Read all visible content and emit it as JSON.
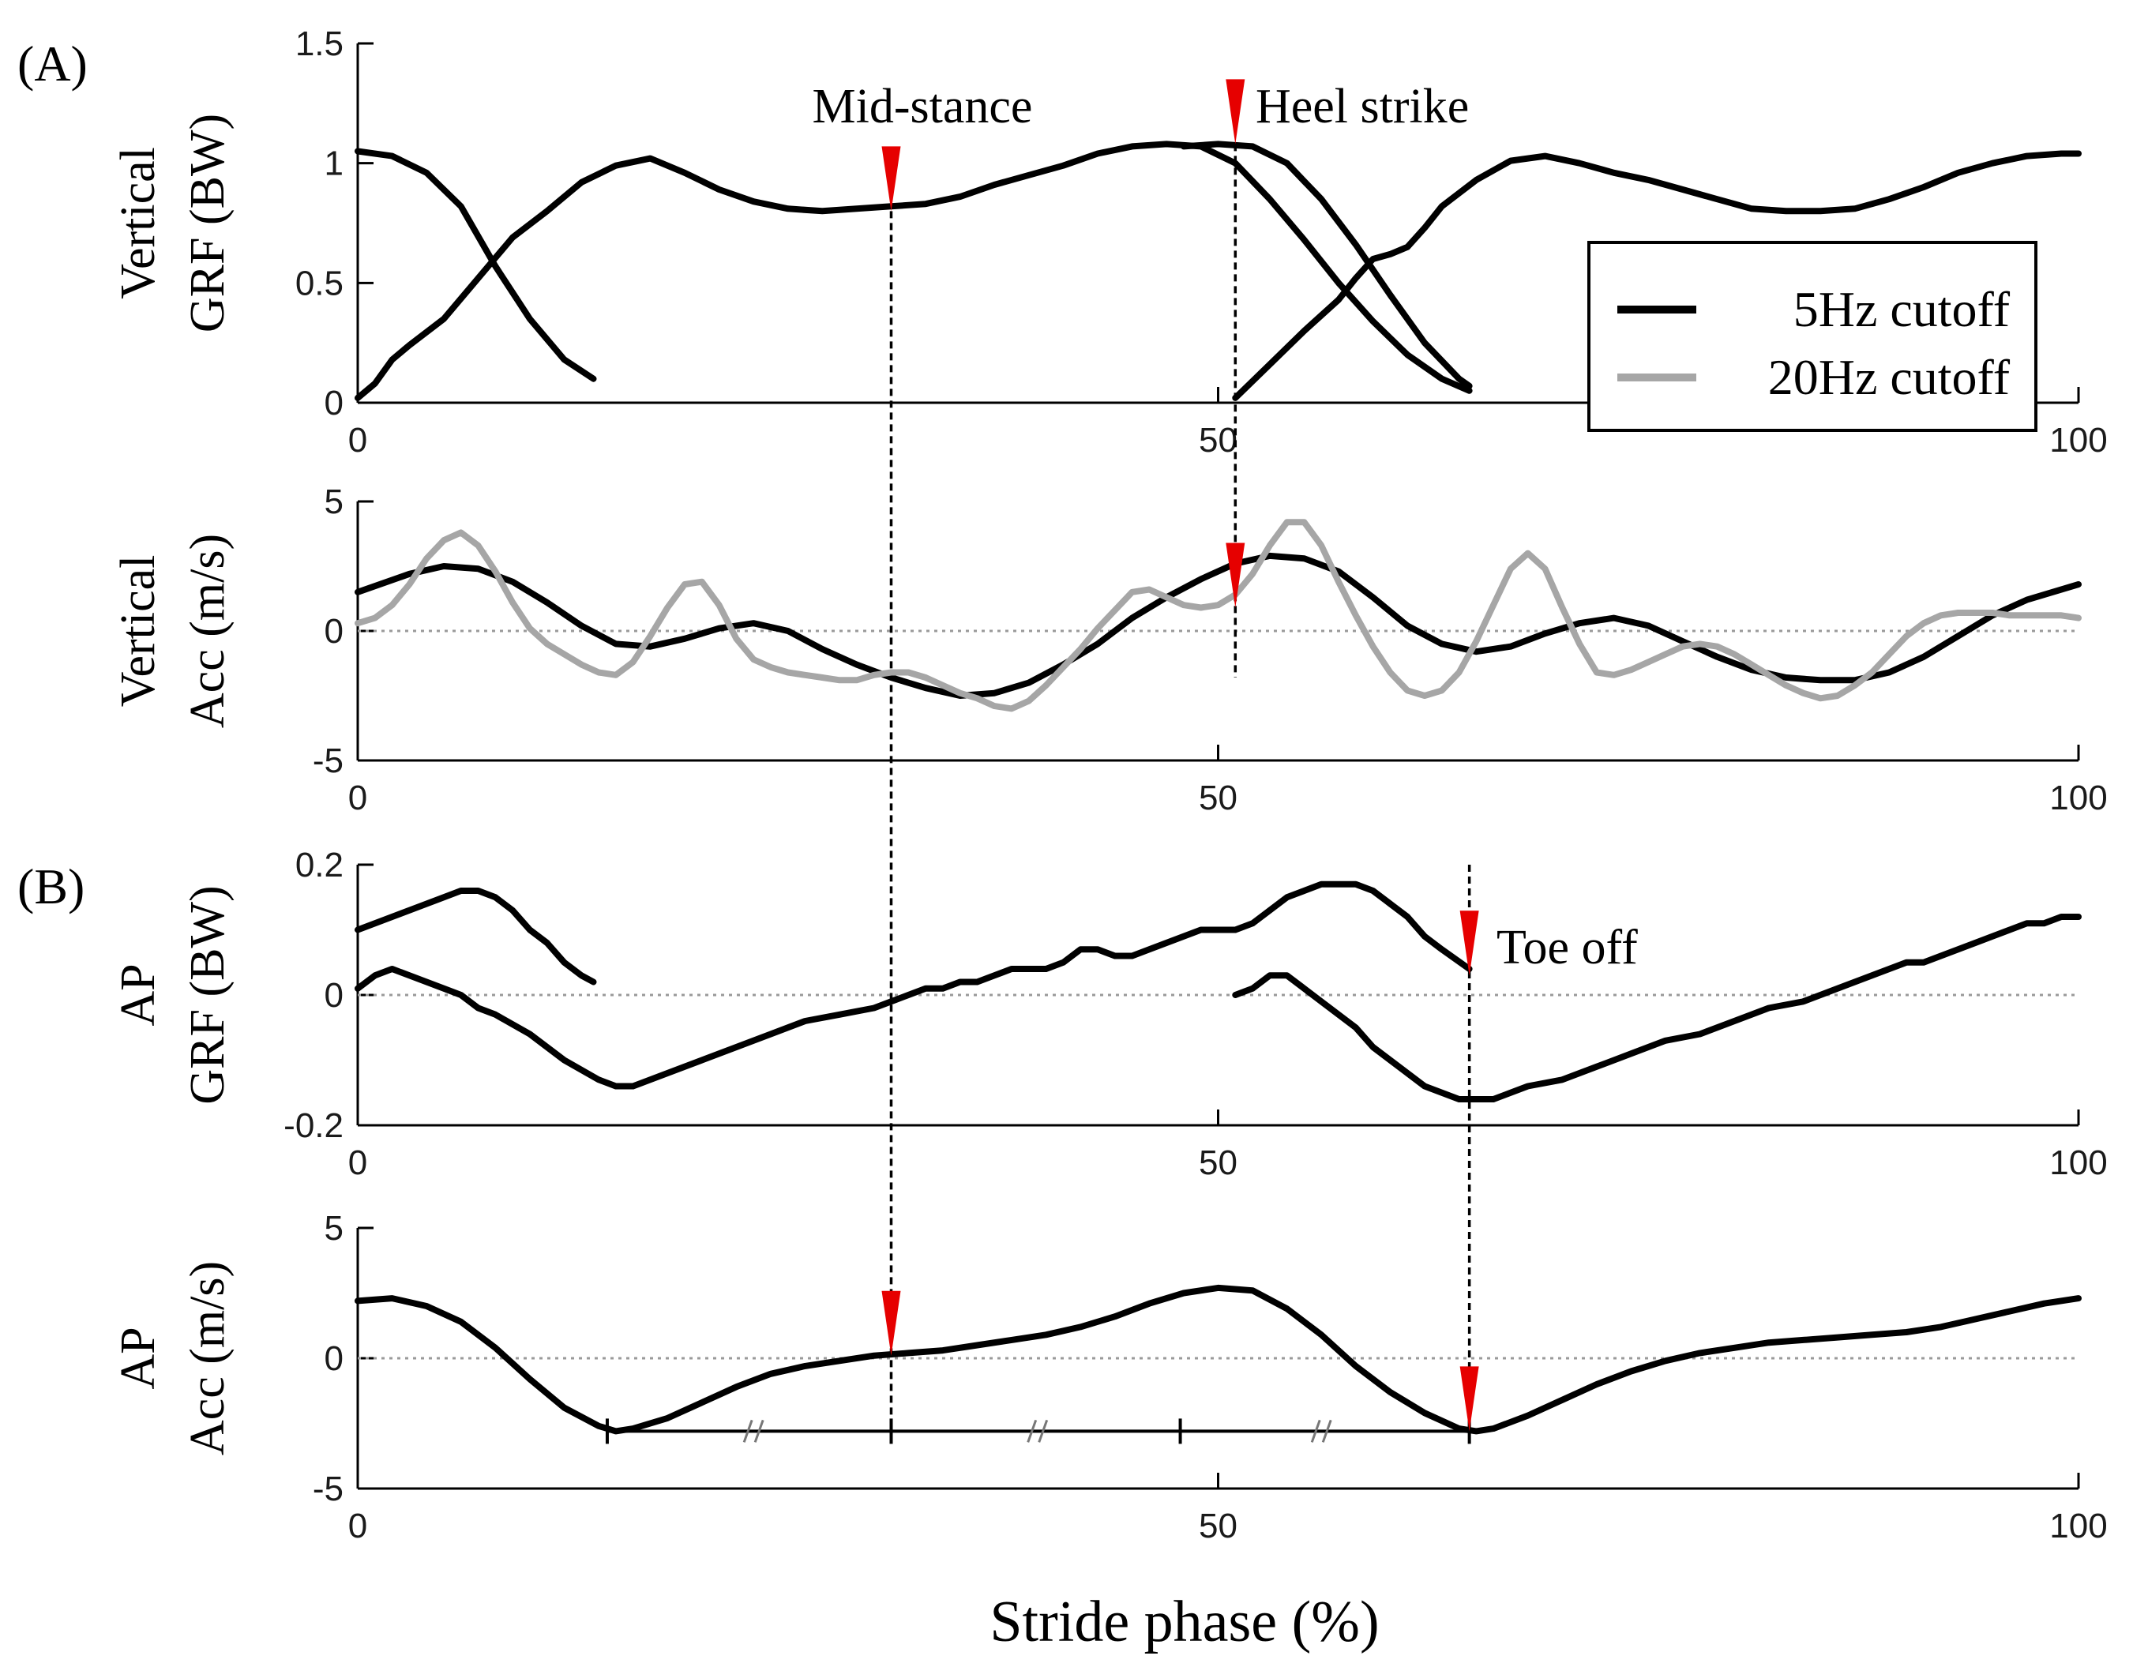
{
  "figure": {
    "panel_a_label": "(A)",
    "panel_b_label": "(B)",
    "xlabel": "Stride phase (%)"
  },
  "colors": {
    "five_hz": "#000000",
    "twenty_hz": "#a6a6a6",
    "marker": "#e60000",
    "zero_line": "#9a9a9a"
  },
  "legend": {
    "entries": [
      {
        "label": "5Hz cutoff"
      },
      {
        "label": "20Hz cutoff"
      }
    ],
    "placement": "right, between first and second panels"
  },
  "chart_data": [
    {
      "type": "line",
      "id": "vertical_grf",
      "ylabel": [
        "Vertical",
        "GRF (BW)"
      ],
      "xlim": [
        0,
        100
      ],
      "ylim": [
        0,
        1.5
      ],
      "xticks": [
        0,
        50,
        100
      ],
      "xtick_labels": [
        "0",
        "50",
        "100"
      ],
      "yticks": [
        0,
        0.5,
        1,
        1.5
      ],
      "ytick_labels": [
        "0",
        "0.5",
        "1",
        "1.5"
      ],
      "zero_line": false,
      "series": [
        {
          "style": "five_hz",
          "x": [
            0,
            2,
            4,
            6,
            8,
            10,
            12,
            13.7
          ],
          "y": [
            1.05,
            1.03,
            0.96,
            0.82,
            0.57,
            0.35,
            0.18,
            0.1
          ]
        },
        {
          "style": "five_hz",
          "x": [
            0,
            1,
            2,
            3,
            5,
            7,
            9,
            11,
            13,
            15,
            17,
            19,
            21,
            23,
            25,
            27,
            29,
            31,
            33,
            35,
            37,
            39,
            41,
            43,
            45,
            47,
            49,
            51,
            53,
            55,
            57,
            59,
            61,
            63,
            64.6
          ],
          "y": [
            0.02,
            0.08,
            0.18,
            0.24,
            0.35,
            0.52,
            0.69,
            0.8,
            0.92,
            0.99,
            1.02,
            0.96,
            0.89,
            0.84,
            0.81,
            0.8,
            0.81,
            0.82,
            0.83,
            0.86,
            0.91,
            0.95,
            0.99,
            1.04,
            1.07,
            1.08,
            1.07,
            1.0,
            0.85,
            0.68,
            0.5,
            0.34,
            0.2,
            0.1,
            0.05
          ]
        },
        {
          "style": "five_hz",
          "x": [
            51,
            53,
            55,
            57,
            58,
            59,
            60,
            61,
            62,
            63,
            65,
            67,
            69,
            71,
            73,
            75,
            77,
            79,
            81,
            83,
            85,
            87,
            89,
            91,
            93,
            95,
            97,
            99,
            100
          ],
          "y": [
            0.02,
            0.16,
            0.3,
            0.43,
            0.52,
            0.6,
            0.62,
            0.65,
            0.73,
            0.82,
            0.93,
            1.01,
            1.03,
            1.0,
            0.96,
            0.93,
            0.89,
            0.85,
            0.81,
            0.8,
            0.8,
            0.81,
            0.85,
            0.9,
            0.96,
            1.0,
            1.03,
            1.04,
            1.04
          ]
        },
        {
          "style": "five_hz",
          "x": [
            48,
            50,
            52,
            54,
            56,
            58,
            60,
            62,
            64,
            64.6
          ],
          "y": [
            1.07,
            1.08,
            1.07,
            1.0,
            0.85,
            0.66,
            0.45,
            0.25,
            0.1,
            0.07
          ]
        }
      ],
      "markers": [
        {
          "label": "Mid-stance",
          "x": 31,
          "y": 0.8
        },
        {
          "label": "Heel strike",
          "x": 51,
          "y": 1.08
        }
      ]
    },
    {
      "type": "line",
      "id": "vertical_acc",
      "ylabel": [
        "Vertical",
        "Acc (m/s)"
      ],
      "xlim": [
        0,
        100
      ],
      "ylim": [
        -5,
        5
      ],
      "xticks": [
        0,
        50,
        100
      ],
      "xtick_labels": [
        "0",
        "50",
        "100"
      ],
      "yticks": [
        -5,
        0,
        5
      ],
      "ytick_labels": [
        "-5",
        "0",
        "5"
      ],
      "zero_line": true,
      "series": [
        {
          "name": "5Hz cutoff",
          "style": "five_hz",
          "x": [
            0,
            3,
            5,
            7,
            9,
            11,
            13,
            15,
            17,
            19,
            21,
            23,
            25,
            27,
            29,
            31,
            33,
            35,
            37,
            39,
            41,
            43,
            45,
            47,
            49,
            51,
            53,
            55,
            57,
            59,
            61,
            63,
            65,
            67,
            69,
            71,
            73,
            75,
            77,
            79,
            81,
            83,
            85,
            87,
            89,
            91,
            93,
            95,
            97,
            100
          ],
          "y": [
            1.5,
            2.2,
            2.5,
            2.4,
            1.9,
            1.1,
            0.2,
            -0.5,
            -0.6,
            -0.3,
            0.1,
            0.3,
            0.0,
            -0.7,
            -1.3,
            -1.8,
            -2.2,
            -2.5,
            -2.4,
            -2.0,
            -1.3,
            -0.5,
            0.5,
            1.3,
            2.0,
            2.6,
            2.9,
            2.8,
            2.3,
            1.3,
            0.2,
            -0.5,
            -0.8,
            -0.6,
            -0.1,
            0.3,
            0.5,
            0.2,
            -0.4,
            -1.0,
            -1.5,
            -1.8,
            -1.9,
            -1.9,
            -1.6,
            -1.0,
            -0.2,
            0.6,
            1.2,
            1.8
          ]
        },
        {
          "name": "20Hz cutoff",
          "style": "twenty_hz",
          "x": [
            0,
            1,
            2,
            3,
            4,
            5,
            6,
            7,
            8,
            9,
            10,
            11,
            12,
            13,
            14,
            15,
            16,
            17,
            18,
            19,
            20,
            21,
            22,
            23,
            24,
            25,
            26,
            27,
            28,
            29,
            30,
            31,
            32,
            33,
            34,
            35,
            36,
            37,
            38,
            39,
            40,
            41,
            42,
            43,
            44,
            45,
            46,
            47,
            48,
            49,
            50,
            51,
            52,
            53,
            54,
            55,
            56,
            57,
            58,
            59,
            60,
            61,
            62,
            63,
            64,
            65,
            66,
            67,
            68,
            69,
            70,
            71,
            72,
            73,
            74,
            75,
            76,
            77,
            78,
            79,
            80,
            81,
            82,
            83,
            84,
            85,
            86,
            87,
            88,
            89,
            90,
            91,
            92,
            93,
            94,
            95,
            96,
            97,
            98,
            99,
            100
          ],
          "y": [
            0.3,
            0.5,
            1.0,
            1.8,
            2.8,
            3.5,
            3.8,
            3.3,
            2.3,
            1.1,
            0.1,
            -0.5,
            -0.9,
            -1.3,
            -1.6,
            -1.7,
            -1.2,
            -0.2,
            0.9,
            1.8,
            1.9,
            1.0,
            -0.3,
            -1.1,
            -1.4,
            -1.6,
            -1.7,
            -1.8,
            -1.9,
            -1.9,
            -1.7,
            -1.6,
            -1.6,
            -1.8,
            -2.1,
            -2.4,
            -2.6,
            -2.9,
            -3.0,
            -2.7,
            -2.1,
            -1.4,
            -0.7,
            0.1,
            0.8,
            1.5,
            1.6,
            1.3,
            1.0,
            0.9,
            1.0,
            1.4,
            2.2,
            3.3,
            4.2,
            4.2,
            3.3,
            1.9,
            0.6,
            -0.6,
            -1.6,
            -2.3,
            -2.5,
            -2.3,
            -1.6,
            -0.4,
            1.0,
            2.4,
            3.0,
            2.4,
            0.9,
            -0.5,
            -1.6,
            -1.7,
            -1.5,
            -1.2,
            -0.9,
            -0.6,
            -0.5,
            -0.6,
            -0.9,
            -1.3,
            -1.7,
            -2.1,
            -2.4,
            -2.6,
            -2.5,
            -2.1,
            -1.6,
            -0.9,
            -0.2,
            0.3,
            0.6,
            0.7,
            0.7,
            0.7,
            0.6,
            0.6,
            0.6,
            0.6,
            0.5
          ]
        }
      ],
      "markers": [
        {
          "x": 51,
          "y": 0.9
        }
      ]
    },
    {
      "type": "line",
      "id": "ap_grf",
      "ylabel": [
        "AP",
        "GRF (BW)"
      ],
      "xlim": [
        0,
        100
      ],
      "ylim": [
        -0.2,
        0.2
      ],
      "xticks": [
        0,
        50,
        100
      ],
      "xtick_labels": [
        "0",
        "50",
        "100"
      ],
      "yticks": [
        -0.2,
        0,
        0.2
      ],
      "ytick_labels": [
        "-0.2",
        "0",
        "0.2"
      ],
      "zero_line": true,
      "series": [
        {
          "style": "five_hz",
          "x": [
            0,
            2,
            4,
            5,
            6,
            7,
            8,
            9,
            10,
            11,
            12,
            13,
            13.7
          ],
          "y": [
            0.1,
            0.12,
            0.14,
            0.15,
            0.16,
            0.16,
            0.15,
            0.13,
            0.1,
            0.08,
            0.05,
            0.03,
            0.02
          ]
        },
        {
          "style": "five_hz",
          "x": [
            0,
            1,
            2,
            3,
            4,
            5,
            6,
            7,
            8,
            10,
            12,
            14,
            15,
            16,
            17,
            18,
            20,
            22,
            24,
            26,
            28,
            30,
            31,
            32,
            33,
            34,
            35,
            36,
            37,
            38,
            39,
            40,
            41,
            42,
            43,
            44,
            45,
            46,
            47,
            48,
            49,
            50,
            51,
            52,
            53,
            54,
            55,
            56,
            57,
            58,
            59,
            60,
            61,
            62,
            63,
            64.6
          ],
          "y": [
            0.01,
            0.03,
            0.04,
            0.03,
            0.02,
            0.01,
            0.0,
            -0.02,
            -0.03,
            -0.06,
            -0.1,
            -0.13,
            -0.14,
            -0.14,
            -0.13,
            -0.12,
            -0.1,
            -0.08,
            -0.06,
            -0.04,
            -0.03,
            -0.02,
            -0.01,
            0.0,
            0.01,
            0.01,
            0.02,
            0.02,
            0.03,
            0.04,
            0.04,
            0.04,
            0.05,
            0.07,
            0.07,
            0.06,
            0.06,
            0.07,
            0.08,
            0.09,
            0.1,
            0.1,
            0.1,
            0.11,
            0.13,
            0.15,
            0.16,
            0.17,
            0.17,
            0.17,
            0.16,
            0.14,
            0.12,
            0.09,
            0.07,
            0.04
          ]
        },
        {
          "style": "five_hz",
          "x": [
            51,
            52,
            53,
            54,
            55,
            56,
            57,
            58,
            59,
            60,
            61,
            62,
            63,
            64,
            65,
            66,
            67,
            68,
            70,
            72,
            74,
            76,
            78,
            80,
            82,
            84,
            86,
            88,
            89,
            90,
            91,
            92,
            93,
            94,
            95,
            96,
            97,
            98,
            99,
            100
          ],
          "y": [
            0.0,
            0.01,
            0.03,
            0.03,
            0.01,
            -0.01,
            -0.03,
            -0.05,
            -0.08,
            -0.1,
            -0.12,
            -0.14,
            -0.15,
            -0.16,
            -0.16,
            -0.16,
            -0.15,
            -0.14,
            -0.13,
            -0.11,
            -0.09,
            -0.07,
            -0.06,
            -0.04,
            -0.02,
            -0.01,
            0.01,
            0.03,
            0.04,
            0.05,
            0.05,
            0.06,
            0.07,
            0.08,
            0.09,
            0.1,
            0.11,
            0.11,
            0.12,
            0.12
          ]
        }
      ],
      "markers": [
        {
          "label": "Toe off",
          "x": 64.6,
          "y": 0.03
        }
      ]
    },
    {
      "type": "line",
      "id": "ap_acc",
      "ylabel": [
        "AP",
        "Acc (m/s)"
      ],
      "xlim": [
        0,
        100
      ],
      "ylim": [
        -5,
        5
      ],
      "xticks": [
        0,
        50,
        100
      ],
      "xtick_labels": [
        "0",
        "50",
        "100"
      ],
      "yticks": [
        -5,
        0,
        5
      ],
      "ytick_labels": [
        "-5",
        "0",
        "5"
      ],
      "zero_line": true,
      "series": [
        {
          "style": "five_hz",
          "x": [
            0,
            2,
            4,
            6,
            8,
            10,
            12,
            14,
            15,
            16,
            18,
            20,
            22,
            24,
            26,
            28,
            30,
            32,
            34,
            36,
            38,
            40,
            42,
            44,
            46,
            48,
            50,
            52,
            54,
            56,
            58,
            60,
            62,
            64,
            65,
            66,
            68,
            70,
            72,
            74,
            76,
            78,
            80,
            82,
            84,
            86,
            88,
            90,
            92,
            94,
            96,
            98,
            100
          ],
          "y": [
            2.2,
            2.3,
            2.0,
            1.4,
            0.4,
            -0.8,
            -1.9,
            -2.6,
            -2.8,
            -2.7,
            -2.3,
            -1.7,
            -1.1,
            -0.6,
            -0.3,
            -0.1,
            0.1,
            0.2,
            0.3,
            0.5,
            0.7,
            0.9,
            1.2,
            1.6,
            2.1,
            2.5,
            2.7,
            2.6,
            1.9,
            0.9,
            -0.3,
            -1.3,
            -2.1,
            -2.7,
            -2.8,
            -2.7,
            -2.2,
            -1.6,
            -1.0,
            -0.5,
            -0.1,
            0.2,
            0.4,
            0.6,
            0.7,
            0.8,
            0.9,
            1.0,
            1.2,
            1.5,
            1.8,
            2.1,
            2.3
          ]
        }
      ],
      "markers": [
        {
          "x": 31,
          "y": 0.1
        },
        {
          "x": 64.6,
          "y": -2.8
        }
      ],
      "interval_bar": {
        "y": -2.8,
        "x_start": 14.5,
        "x_end": 64.6,
        "ticks": [
          14.5,
          31,
          47.8,
          64.6
        ],
        "breaks": [
          23,
          39.5,
          56
        ]
      }
    }
  ],
  "guides": [
    {
      "x": 31,
      "from_panel": "vertical_grf",
      "from_y": 0.8,
      "to_panel": "ap_acc",
      "to_y": -2.8
    },
    {
      "x": 51,
      "from_panel": "vertical_grf",
      "from_y": 1.08,
      "to_panel": "vertical_acc",
      "to_y": -1.8
    },
    {
      "x": 64.6,
      "from_panel": "ap_grf",
      "from_y": 0.2,
      "to_panel": "ap_acc",
      "to_y": -2.8
    }
  ]
}
